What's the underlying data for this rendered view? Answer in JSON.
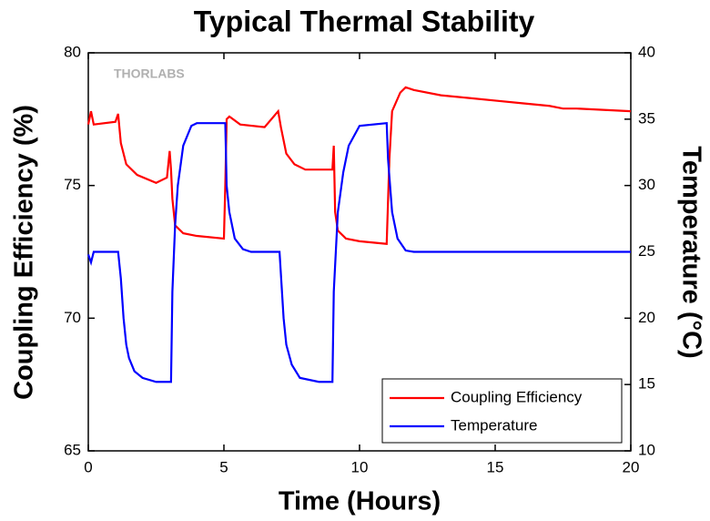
{
  "chart_data": {
    "type": "line",
    "title": "Typical Thermal Stability",
    "x_label": "Time (Hours)",
    "y_label": "Coupling Efficiency (%)",
    "y2_label": "Temperature (°C)",
    "watermark": "THORLABS",
    "xlim": [
      0,
      20
    ],
    "xticks": [
      0,
      5,
      10,
      15,
      20
    ],
    "ylim": [
      65,
      80
    ],
    "yticks": [
      65,
      70,
      75,
      80
    ],
    "y2lim": [
      10,
      40
    ],
    "y2ticks": [
      10,
      15,
      20,
      25,
      30,
      35,
      40
    ],
    "grid": false,
    "legend": "lower right",
    "series": [
      {
        "name": "Coupling Efficiency",
        "color": "#ff0000",
        "x": [
          0,
          0.1,
          0.2,
          1.0,
          1.1,
          1.2,
          1.4,
          1.8,
          2.5,
          2.9,
          3.0,
          3.05,
          3.1,
          3.2,
          3.5,
          4,
          5,
          5.05,
          5.1,
          5.2,
          5.6,
          6.5,
          7.0,
          7.1,
          7.3,
          7.6,
          8,
          9.0,
          9.05,
          9.1,
          9.2,
          9.5,
          10,
          11,
          11.1,
          11.2,
          11.5,
          11.7,
          12,
          13,
          14,
          15,
          16,
          17,
          17.5,
          18,
          20
        ],
        "values": [
          77.3,
          77.8,
          77.3,
          77.4,
          77.7,
          76.6,
          75.8,
          75.4,
          75.1,
          75.3,
          76.3,
          75.6,
          74.5,
          73.5,
          73.2,
          73.1,
          73.0,
          75.0,
          77.5,
          77.6,
          77.3,
          77.2,
          77.8,
          77.2,
          76.2,
          75.8,
          75.6,
          75.6,
          76.5,
          74.0,
          73.3,
          73.0,
          72.9,
          72.8,
          76.0,
          77.8,
          78.5,
          78.7,
          78.6,
          78.4,
          78.3,
          78.2,
          78.1,
          78.0,
          77.9,
          77.9,
          77.8
        ]
      },
      {
        "name": "Temperature",
        "color": "#0000ff",
        "axis": "y2",
        "x": [
          0,
          0.1,
          0.2,
          1.1,
          1.2,
          1.3,
          1.4,
          1.5,
          1.7,
          2.0,
          2.5,
          3.05,
          3.1,
          3.2,
          3.3,
          3.5,
          3.8,
          4,
          5,
          5.05,
          5.1,
          5.2,
          5.4,
          5.7,
          6,
          7,
          7.05,
          7.2,
          7.3,
          7.5,
          7.8,
          8.5,
          9.0,
          9.05,
          9.2,
          9.4,
          9.6,
          10,
          11,
          11.05,
          11.2,
          11.4,
          11.7,
          12,
          20
        ],
        "values": [
          24.8,
          24.2,
          25,
          25,
          23,
          20,
          18,
          17,
          16,
          15.5,
          15.2,
          15.2,
          22,
          27,
          30,
          33,
          34.5,
          34.7,
          34.7,
          34.7,
          30,
          28,
          26,
          25.2,
          25,
          25,
          25,
          20,
          18,
          16.5,
          15.5,
          15.2,
          15.2,
          22,
          28,
          31,
          33,
          34.5,
          34.7,
          32,
          28,
          26,
          25.1,
          25,
          25
        ]
      }
    ]
  }
}
